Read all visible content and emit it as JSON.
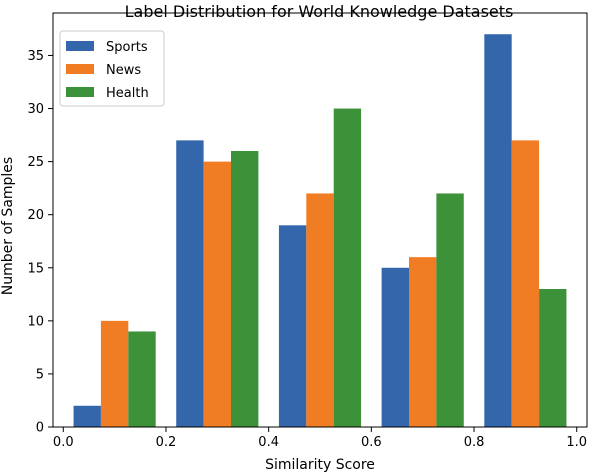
{
  "chart_data": {
    "type": "bar",
    "title": "Label Distribution for World Knowledge Datasets",
    "xlabel": "Similarity Score",
    "ylabel": "Number of Samples",
    "xlim": [
      -0.02,
      1.02
    ],
    "ylim": [
      0,
      39.0
    ],
    "xticks": [
      0.0,
      0.2,
      0.4,
      0.6,
      0.8,
      1.0
    ],
    "xtick_labels": [
      "0.0",
      "0.2",
      "0.4",
      "0.6",
      "0.8",
      "1.0"
    ],
    "yticks": [
      0,
      5,
      10,
      15,
      20,
      25,
      30,
      35
    ],
    "ytick_labels": [
      "0",
      "5",
      "10",
      "15",
      "20",
      "25",
      "30",
      "35"
    ],
    "bin_edges": [
      0.0,
      0.2,
      0.4,
      0.6,
      0.8,
      1.0
    ],
    "legend_position": "top-left",
    "grid": false,
    "series": [
      {
        "name": "Sports",
        "color": "#3366aa",
        "values": [
          2,
          27,
          19,
          15,
          37
        ]
      },
      {
        "name": "News",
        "color": "#f07d24",
        "values": [
          10,
          25,
          22,
          16,
          27
        ]
      },
      {
        "name": "Health",
        "color": "#3d9139",
        "values": [
          9,
          26,
          30,
          22,
          13
        ]
      }
    ]
  }
}
